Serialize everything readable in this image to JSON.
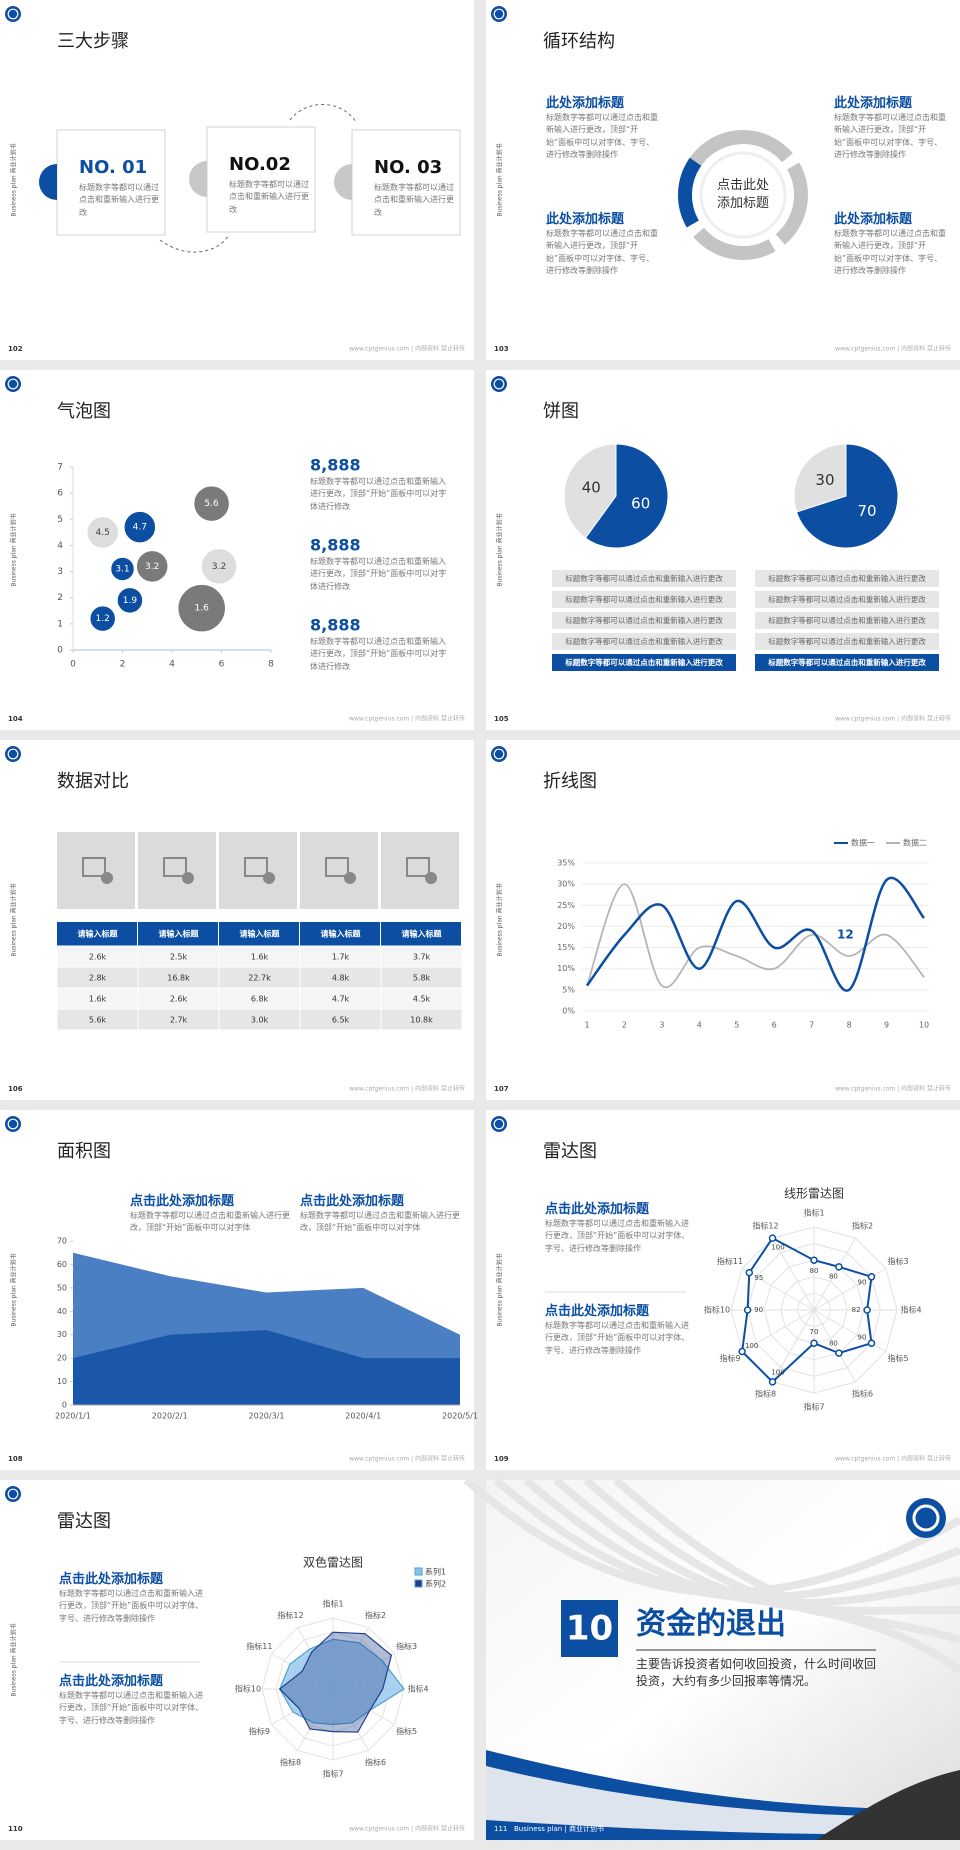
{
  "side_label": "Business plan 商业计划书",
  "footer": "www.cptgenius.com | 内部资料 禁止转传",
  "slides": [
    {
      "page": "102",
      "title": "三大步骤",
      "steps": [
        {
          "label": "NO. 01",
          "text": "标题数字等都可以通过点击和重新输入进行更改"
        },
        {
          "label": "NO.02",
          "text": "标题数字等都可以通过点击和重新输入进行更改"
        },
        {
          "label": "NO. 03",
          "text": "标题数字等都可以通过点击和重新输入进行更改"
        }
      ]
    },
    {
      "page": "103",
      "title": "循环结构",
      "cycle": {
        "center": "点击此处添加标题",
        "items": [
          {
            "title": "此处添加标题",
            "text": "标题数字等都可以通过点击和重新输入进行更改，顶部“开始”面板中可以对字体、字号、进行修改等删除操作"
          },
          {
            "title": "此处添加标题",
            "text": "标题数字等都可以通过点击和重新输入进行更改，顶部“开始”面板中可以对字体、字号、进行修改等删除操作"
          },
          {
            "title": "此处添加标题",
            "text": "标题数字等都可以通过点击和重新输入进行更改，顶部“开始”面板中可以对字体、字号、进行修改等删除操作"
          },
          {
            "title": "此处添加标题",
            "text": "标题数字等都可以通过点击和重新输入进行更改，顶部“开始”面板中可以对字体、字号、进行修改等删除操作"
          }
        ]
      }
    },
    {
      "page": "104",
      "title": "气泡图",
      "chart_data": {
        "type": "scatter",
        "x": [
          1.2,
          2.3,
          2.0,
          3.2,
          1.2,
          2.7,
          5.6,
          5.9,
          5.2
        ],
        "values": [
          1.2,
          1.9,
          3.1,
          3.2,
          4.5,
          4.7,
          5.6,
          3.2,
          1.6
        ],
        "sizes": [
          13,
          13,
          12,
          16,
          16,
          16,
          18,
          18,
          24
        ],
        "colors": [
          "#0b4ea2",
          "#0b4ea2",
          "#0b4ea2",
          "#7a7a7a",
          "#dddddd",
          "#0b4ea2",
          "#7a7a7a",
          "#dddddd",
          "#7a7a7a"
        ],
        "xlim": [
          0,
          8
        ],
        "xticks": [
          0,
          2,
          4,
          6,
          8
        ],
        "ylim": [
          0,
          7
        ],
        "yticks": [
          0,
          1,
          2,
          3,
          4,
          5,
          6,
          7
        ]
      },
      "items": [
        {
          "value": "8,888",
          "text": "标题数字等都可以通过点击和重新输入进行更改，顶部“开始”面板中可以对字体进行修改"
        },
        {
          "value": "8,888",
          "text": "标题数字等都可以通过点击和重新输入进行更改，顶部“开始”面板中可以对字体进行修改"
        },
        {
          "value": "8,888",
          "text": "标题数字等都可以通过点击和重新输入进行更改，顶部“开始”面板中可以对字体进行修改"
        }
      ]
    },
    {
      "page": "105",
      "title": "饼图",
      "chart_data": [
        {
          "type": "pie",
          "values": [
            40,
            60
          ],
          "colors": [
            "#e0e0e0",
            "#0b4ea2"
          ]
        },
        {
          "type": "pie",
          "values": [
            30,
            70
          ],
          "colors": [
            "#e0e0e0",
            "#0b4ea2"
          ]
        }
      ],
      "lists": [
        [
          "标题数字等都可以通过点击和重新输入进行更改",
          "标题数字等都可以通过点击和重新输入进行更改",
          "标题数字等都可以通过点击和重新输入进行更改",
          "标题数字等都可以通过点击和重新输入进行更改",
          "标题数字等都可以通过点击和重新输入进行更改"
        ],
        [
          "标题数字等都可以通过点击和重新输入进行更改",
          "标题数字等都可以通过点击和重新输入进行更改",
          "标题数字等都可以通过点击和重新输入进行更改",
          "标题数字等都可以通过点击和重新输入进行更改",
          "标题数字等都可以通过点击和重新输入进行更改"
        ]
      ]
    },
    {
      "page": "106",
      "title": "数据对比",
      "table": {
        "header": [
          "请输入标题",
          "请输入标题",
          "请输入标题",
          "请输入标题",
          "请输入标题"
        ],
        "rows": [
          [
            "2.6k",
            "2.5k",
            "1.6k",
            "1.7k",
            "3.7k"
          ],
          [
            "2.8k",
            "16.8k",
            "22.7k",
            "4.8k",
            "5.8k"
          ],
          [
            "1.6k",
            "2.6k",
            "6.8k",
            "4.7k",
            "4.5k"
          ],
          [
            "5.6k",
            "2.7k",
            "3.0k",
            "6.5k",
            "10.8k"
          ]
        ]
      }
    },
    {
      "page": "107",
      "title": "折线图",
      "chart_data": {
        "type": "line",
        "x": [
          1,
          2,
          3,
          4,
          5,
          6,
          7,
          8,
          9,
          10
        ],
        "series": [
          {
            "name": "数据一",
            "color": "#0b4ea2",
            "values": [
              6,
              18,
              25,
              10,
              26,
              15,
              19,
              5,
              31,
              22
            ]
          },
          {
            "name": "数据二",
            "color": "#b5b5b5",
            "values": [
              6,
              30,
              6,
              15,
              13,
              10,
              18,
              13,
              18,
              8
            ]
          }
        ],
        "annotation": "12",
        "xlim": [
          1,
          10
        ],
        "ylim": [
          0,
          35
        ],
        "yticks": [
          {
            "value": 0,
            "label": "0%"
          },
          {
            "value": 5,
            "label": "5%"
          },
          {
            "value": 10,
            "label": "10%"
          },
          {
            "value": 15,
            "label": "15%"
          },
          {
            "value": 20,
            "label": "20%"
          },
          {
            "value": 25,
            "label": "25%"
          },
          {
            "value": 30,
            "label": "30%"
          },
          {
            "value": 35,
            "label": "35%"
          }
        ],
        "grid": true
      }
    },
    {
      "page": "108",
      "title": "面积图",
      "chart_data": {
        "type": "area",
        "categories": [
          "2020/1/1",
          "2020/2/1",
          "2020/3/1",
          "2020/4/1",
          "2020/5/1"
        ],
        "series": [
          {
            "color": "#4a7fc4",
            "values": [
              65,
              55,
              48,
              50,
              30
            ]
          },
          {
            "color": "#1a57a8",
            "values": [
              20,
              30,
              32,
              20,
              20
            ]
          }
        ],
        "ylim": [
          0,
          70
        ],
        "yticks": [
          0,
          10,
          20,
          30,
          40,
          50,
          60,
          70
        ]
      },
      "items": [
        {
          "title": "点击此处添加标题",
          "text": "标题数字等都可以通过点击和重新输入进行更改，顶部“开始”面板中可以对字体"
        },
        {
          "title": "点击此处添加标题",
          "text": "标题数字等都可以通过点击和重新输入进行更改，顶部“开始”面板中可以对字体"
        }
      ]
    },
    {
      "page": "109",
      "title": "雷达图",
      "chart_data": {
        "type": "radar",
        "title": "线形雷达图",
        "categories": [
          "指标1",
          "指标2",
          "指标3",
          "指标4",
          "指标5",
          "指标6",
          "指标7",
          "指标8",
          "指标9",
          "指标10",
          "指标11",
          "指标12"
        ],
        "series": [
          {
            "color": "#0b4ea2",
            "values": [
              80,
              80,
              90,
              82,
              90,
              80,
              70,
              100,
              100,
              90,
              95,
              100
            ]
          }
        ],
        "rlim": [
          50,
          100
        ]
      },
      "items": [
        {
          "title": "点击此处添加标题",
          "text": "标题数字等都可以通过点击和重新输入进行更改，顶部“开始”面板中可以对字体、字号、进行修改等删除操作"
        },
        {
          "title": "点击此处添加标题",
          "text": "标题数字等都可以通过点击和重新输入进行更改，顶部“开始”面板中可以对字体、字号、进行修改等删除操作"
        }
      ]
    },
    {
      "page": "110",
      "title": "雷达图",
      "chart_data": {
        "type": "radar",
        "title": "双色雷达图",
        "categories": [
          "指标1",
          "指标2",
          "指标3",
          "指标4",
          "指标5",
          "指标6",
          "指标7",
          "指标8",
          "指标9",
          "指标10",
          "指标11",
          "指标12"
        ],
        "series": [
          {
            "name": "系列1",
            "color": "#8cc3ea",
            "values": [
              70,
              75,
              80,
              100,
              60,
              55,
              50,
              55,
              65,
              75,
              70,
              65
            ]
          },
          {
            "name": "系列2",
            "color": "#1f3f8a",
            "values": [
              80,
              90,
              95,
              70,
              60,
              70,
              60,
              65,
              55,
              75,
              50,
              60
            ]
          }
        ],
        "rlim": [
          0,
          100
        ]
      },
      "items": [
        {
          "title": "点击此处添加标题",
          "text": "标题数字等都可以通过点击和重新输入进行更改，顶部“开始”面板中可以对字体、字号、进行修改等删除操作"
        },
        {
          "title": "点击此处添加标题",
          "text": "标题数字等都可以通过点击和重新输入进行更改，顶部“开始”面板中可以对字体、字号、进行修改等删除操作"
        }
      ]
    },
    {
      "page": "111",
      "section": {
        "number": "10",
        "title": "资金的退出",
        "text": "主要告诉投资者如何收回投资，什么时间收回投资，大约有多少回报率等情况。",
        "footer": "Business plan | 商业计划书"
      }
    }
  ]
}
